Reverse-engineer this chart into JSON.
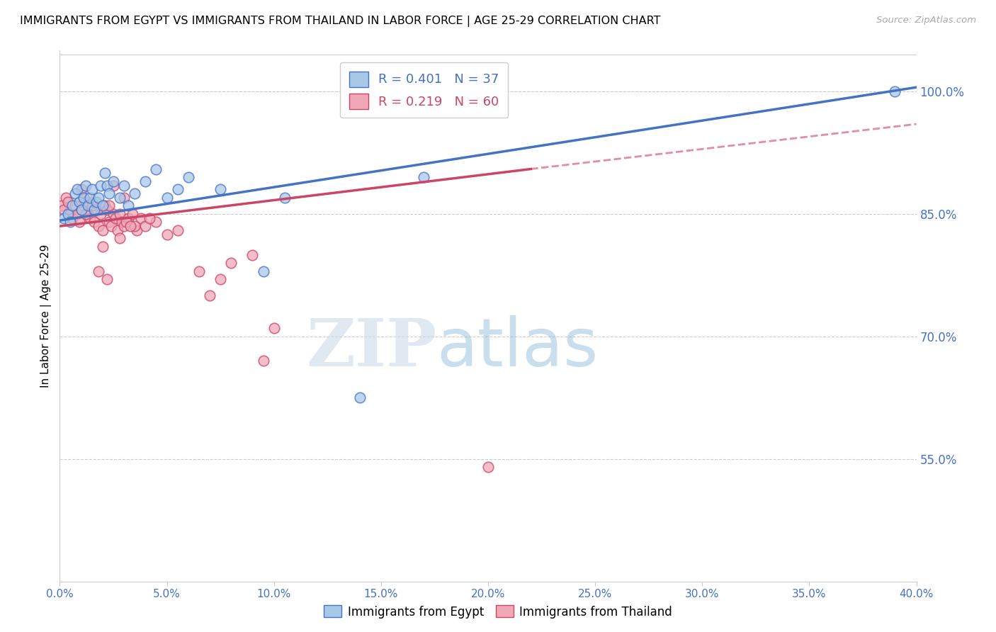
{
  "title": "IMMIGRANTS FROM EGYPT VS IMMIGRANTS FROM THAILAND IN LABOR FORCE | AGE 25-29 CORRELATION CHART",
  "source": "Source: ZipAtlas.com",
  "ylabel": "In Labor Force | Age 25-29",
  "xlim": [
    0.0,
    40.0
  ],
  "ylim": [
    40.0,
    105.0
  ],
  "yticks": [
    55.0,
    70.0,
    85.0,
    100.0
  ],
  "xticks": [
    0.0,
    5.0,
    10.0,
    15.0,
    20.0,
    25.0,
    30.0,
    35.0,
    40.0
  ],
  "blue_R": 0.401,
  "blue_N": 37,
  "pink_R": 0.219,
  "pink_N": 60,
  "blue_color": "#a8c8e8",
  "pink_color": "#f0a8b8",
  "trend_blue": "#4472c4",
  "trend_pink": "#cc4466",
  "legend_blue_label": "Immigrants from Egypt",
  "legend_pink_label": "Immigrants from Thailand",
  "watermark_zip": "ZIP",
  "watermark_atlas": "atlas",
  "blue_scatter_x": [
    0.2,
    0.4,
    0.5,
    0.6,
    0.7,
    0.8,
    0.9,
    1.0,
    1.1,
    1.2,
    1.3,
    1.4,
    1.5,
    1.6,
    1.7,
    1.8,
    1.9,
    2.0,
    2.1,
    2.2,
    2.3,
    2.5,
    2.8,
    3.0,
    3.2,
    3.5,
    4.0,
    4.5,
    5.0,
    5.5,
    6.0,
    7.5,
    9.5,
    10.5,
    14.0,
    17.0,
    39.0
  ],
  "blue_scatter_y": [
    84.5,
    85.0,
    84.0,
    86.0,
    87.5,
    88.0,
    86.5,
    85.5,
    87.0,
    88.5,
    86.0,
    87.0,
    88.0,
    85.5,
    86.5,
    87.0,
    88.5,
    86.0,
    90.0,
    88.5,
    87.5,
    89.0,
    87.0,
    88.5,
    86.0,
    87.5,
    89.0,
    90.5,
    87.0,
    88.0,
    89.5,
    88.0,
    78.0,
    87.0,
    62.5,
    89.5,
    100.0
  ],
  "pink_scatter_x": [
    0.1,
    0.2,
    0.3,
    0.4,
    0.5,
    0.6,
    0.7,
    0.8,
    0.9,
    1.0,
    1.1,
    1.2,
    1.3,
    1.4,
    1.5,
    1.6,
    1.7,
    1.8,
    1.9,
    2.0,
    2.1,
    2.2,
    2.3,
    2.4,
    2.5,
    2.6,
    2.7,
    2.8,
    2.9,
    3.0,
    3.2,
    3.4,
    3.6,
    3.8,
    4.0,
    4.5,
    5.0,
    5.5,
    6.5,
    7.0,
    7.5,
    8.0,
    9.0,
    9.5,
    10.0,
    3.0,
    3.5,
    4.2,
    2.5,
    2.8,
    3.1,
    3.3,
    1.5,
    1.8,
    2.0,
    2.2,
    1.0,
    1.2,
    20.0,
    2.3
  ],
  "pink_scatter_y": [
    86.0,
    85.5,
    87.0,
    86.5,
    85.0,
    84.5,
    86.0,
    85.0,
    84.0,
    85.5,
    87.0,
    86.5,
    85.0,
    84.5,
    86.5,
    84.0,
    85.5,
    83.5,
    85.0,
    83.0,
    86.0,
    85.5,
    84.0,
    83.5,
    85.0,
    84.5,
    83.0,
    85.0,
    84.0,
    83.5,
    84.5,
    85.0,
    83.0,
    84.5,
    83.5,
    84.0,
    82.5,
    83.0,
    78.0,
    75.0,
    77.0,
    79.0,
    80.0,
    67.0,
    71.0,
    87.0,
    83.5,
    84.5,
    88.5,
    82.0,
    84.0,
    83.5,
    86.0,
    78.0,
    81.0,
    77.0,
    88.0,
    85.0,
    54.0,
    86.0
  ],
  "trend_blue_x0": 0.0,
  "trend_blue_y0": 84.2,
  "trend_blue_x1": 40.0,
  "trend_blue_y1": 100.5,
  "trend_pink_x0": 0.0,
  "trend_pink_y0": 83.5,
  "trend_pink_x1": 22.0,
  "trend_pink_y1": 90.5,
  "trend_pink_dash_x0": 22.0,
  "trend_pink_dash_y0": 90.5,
  "trend_pink_dash_x1": 40.0,
  "trend_pink_dash_y1": 96.0
}
